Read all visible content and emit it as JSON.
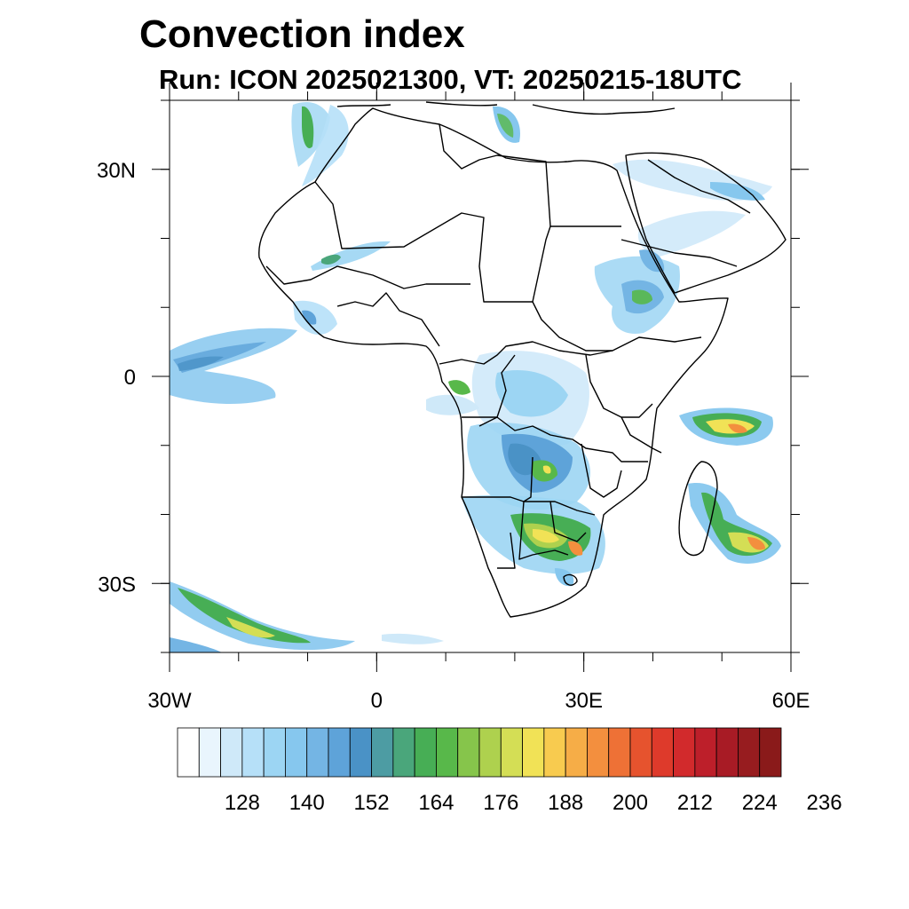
{
  "title": "Convection index",
  "subtitle": "Run: ICON 2025021300,  VT: 20250215-18UTC",
  "map": {
    "lon_range": [
      -30,
      60
    ],
    "lat_range": [
      -40,
      40
    ],
    "lat_ticks": [
      {
        "value": 30,
        "label": "30N"
      },
      {
        "value": 0,
        "label": "0"
      },
      {
        "value": -30,
        "label": "30S"
      }
    ],
    "lon_ticks": [
      {
        "value": -30,
        "label": "30W"
      },
      {
        "value": 0,
        "label": "0"
      },
      {
        "value": 30,
        "label": "30E"
      },
      {
        "value": 60,
        "label": "60E"
      }
    ]
  },
  "colorbar": {
    "colors": [
      "#ffffff",
      "#e9f5fd",
      "#cfe9f9",
      "#b6e0f8",
      "#9cd5f3",
      "#86c7ee",
      "#74b5e4",
      "#5ea3d9",
      "#4a92c6",
      "#4d9ca3",
      "#4aa67b",
      "#47ae55",
      "#58b84a",
      "#86c54b",
      "#aed14e",
      "#d4de55",
      "#f1e256",
      "#f8cb4f",
      "#f6ad47",
      "#f38f3e",
      "#ee7136",
      "#e6532e",
      "#de3a2b",
      "#d22a2c",
      "#bd1f2a",
      "#a81b25",
      "#971c1f",
      "#8a1a1a"
    ],
    "labels": [
      "128",
      "140",
      "152",
      "164",
      "176",
      "188",
      "200",
      "212",
      "224",
      "236"
    ]
  }
}
